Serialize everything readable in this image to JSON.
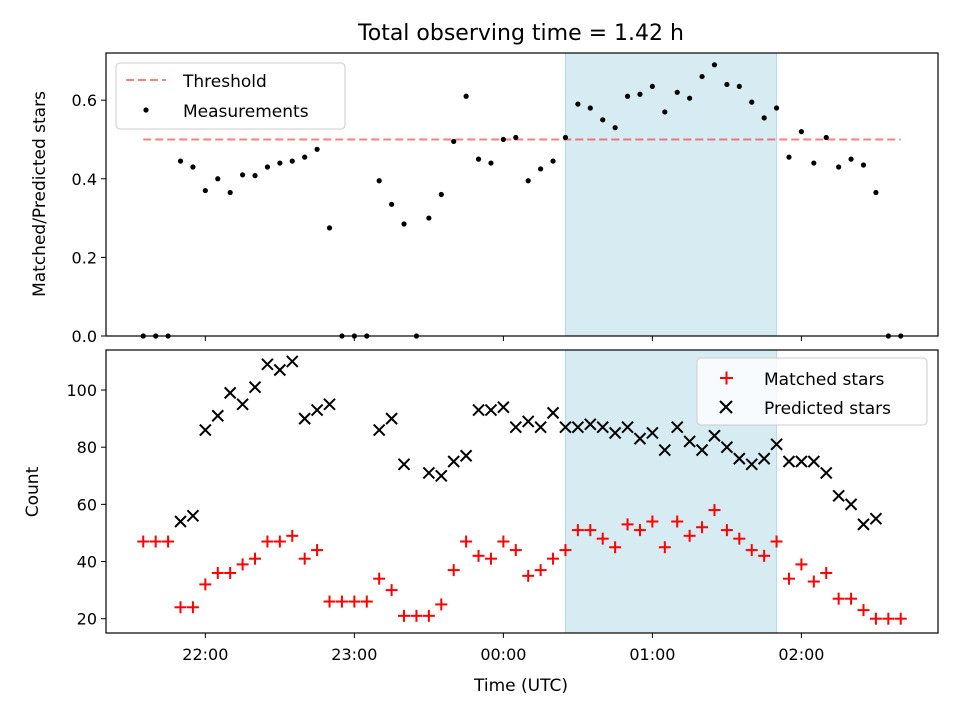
{
  "title": "Total observing time = 1.42 h",
  "xlabel": "Time (UTC)",
  "x_ticks": [
    "22:00",
    "23:00",
    "00:00",
    "01:00",
    "02:00"
  ],
  "colors": {
    "highlight": "#add8e6",
    "threshold": "#ff0000",
    "measurement": "#000000",
    "matched": "#ff0000",
    "predicted": "#000000"
  },
  "chart_data": [
    {
      "type": "scatter",
      "ylabel": "Matched/Predicted stars",
      "ylim": [
        0,
        0.72
      ],
      "y_ticks": [
        "0.0",
        "0.2",
        "0.4",
        "0.6"
      ],
      "y_tick_values": [
        0,
        0.2,
        0.4,
        0.6
      ],
      "xlim": [
        "21:20",
        "02:55"
      ],
      "highlight_span": [
        "00:25",
        "01:50"
      ],
      "legend": {
        "placement": "upper-left",
        "threshold_label": "Threshold",
        "measurements_label": "Measurements"
      },
      "threshold": {
        "name": "Threshold",
        "y": 0.5,
        "x": [
          "21:35",
          "02:40"
        ]
      },
      "series": [
        {
          "name": "Measurements",
          "points": [
            [
              "21:35",
              0
            ],
            [
              "21:40",
              0
            ],
            [
              "21:45",
              0
            ],
            [
              "21:50",
              0.445
            ],
            [
              "21:55",
              0.43
            ],
            [
              "22:00",
              0.37
            ],
            [
              "22:05",
              0.4
            ],
            [
              "22:10",
              0.365
            ],
            [
              "22:15",
              0.41
            ],
            [
              "22:20",
              0.408
            ],
            [
              "22:25",
              0.43
            ],
            [
              "22:30",
              0.44
            ],
            [
              "22:35",
              0.445
            ],
            [
              "22:40",
              0.455
            ],
            [
              "22:45",
              0.475
            ],
            [
              "22:50",
              0.275
            ],
            [
              "22:55",
              0
            ],
            [
              "23:00",
              0
            ],
            [
              "23:05",
              0
            ],
            [
              "23:10",
              0.395
            ],
            [
              "23:15",
              0.335
            ],
            [
              "23:20",
              0.285
            ],
            [
              "23:25",
              0
            ],
            [
              "23:30",
              0.3
            ],
            [
              "23:35",
              0.36
            ],
            [
              "23:40",
              0.495
            ],
            [
              "23:45",
              0.61
            ],
            [
              "23:50",
              0.45
            ],
            [
              "23:55",
              0.44
            ],
            [
              "00:00",
              0.5
            ],
            [
              "00:05",
              0.505
            ],
            [
              "00:10",
              0.395
            ],
            [
              "00:15",
              0.425
            ],
            [
              "00:20",
              0.445
            ],
            [
              "00:25",
              0.505
            ],
            [
              "00:30",
              0.59
            ],
            [
              "00:35",
              0.58
            ],
            [
              "00:40",
              0.55
            ],
            [
              "00:45",
              0.53
            ],
            [
              "00:50",
              0.61
            ],
            [
              "00:55",
              0.615
            ],
            [
              "01:00",
              0.635
            ],
            [
              "01:05",
              0.57
            ],
            [
              "01:10",
              0.62
            ],
            [
              "01:15",
              0.605
            ],
            [
              "01:20",
              0.66
            ],
            [
              "01:25",
              0.69
            ],
            [
              "01:30",
              0.64
            ],
            [
              "01:35",
              0.635
            ],
            [
              "01:40",
              0.595
            ],
            [
              "01:45",
              0.555
            ],
            [
              "01:50",
              0.58
            ],
            [
              "01:55",
              0.455
            ],
            [
              "02:00",
              0.52
            ],
            [
              "02:05",
              0.44
            ],
            [
              "02:10",
              0.505
            ],
            [
              "02:15",
              0.43
            ],
            [
              "02:20",
              0.45
            ],
            [
              "02:25",
              0.435
            ],
            [
              "02:30",
              0.365
            ],
            [
              "02:35",
              0
            ],
            [
              "02:40",
              0
            ]
          ]
        }
      ]
    },
    {
      "type": "scatter",
      "ylabel": "Count",
      "ylim": [
        15,
        114
      ],
      "y_ticks": [
        "20",
        "40",
        "60",
        "80",
        "100"
      ],
      "y_tick_values": [
        20,
        40,
        60,
        80,
        100
      ],
      "xlim": [
        "21:20",
        "02:55"
      ],
      "highlight_span": [
        "00:25",
        "01:50"
      ],
      "legend": {
        "placement": "upper-right",
        "matched_label": "Matched stars",
        "predicted_label": "Predicted stars"
      },
      "series": [
        {
          "name": "Matched stars",
          "marker": "+",
          "points": [
            [
              "21:35",
              47
            ],
            [
              "21:40",
              47
            ],
            [
              "21:45",
              47
            ],
            [
              "21:50",
              24
            ],
            [
              "21:55",
              24
            ],
            [
              "22:00",
              32
            ],
            [
              "22:05",
              36
            ],
            [
              "22:10",
              36
            ],
            [
              "22:15",
              39
            ],
            [
              "22:20",
              41
            ],
            [
              "22:25",
              47
            ],
            [
              "22:30",
              47
            ],
            [
              "22:35",
              49
            ],
            [
              "22:40",
              41
            ],
            [
              "22:45",
              44
            ],
            [
              "22:50",
              26
            ],
            [
              "22:55",
              26
            ],
            [
              "23:00",
              26
            ],
            [
              "23:05",
              26
            ],
            [
              "23:10",
              34
            ],
            [
              "23:15",
              30
            ],
            [
              "23:20",
              21
            ],
            [
              "23:25",
              21
            ],
            [
              "23:30",
              21
            ],
            [
              "23:35",
              25
            ],
            [
              "23:40",
              37
            ],
            [
              "23:45",
              47
            ],
            [
              "23:50",
              42
            ],
            [
              "23:55",
              41
            ],
            [
              "00:00",
              47
            ],
            [
              "00:05",
              44
            ],
            [
              "00:10",
              35
            ],
            [
              "00:15",
              37
            ],
            [
              "00:20",
              41
            ],
            [
              "00:25",
              44
            ],
            [
              "00:30",
              51
            ],
            [
              "00:35",
              51
            ],
            [
              "00:40",
              48
            ],
            [
              "00:45",
              45
            ],
            [
              "00:50",
              53
            ],
            [
              "00:55",
              51
            ],
            [
              "01:00",
              54
            ],
            [
              "01:05",
              45
            ],
            [
              "01:10",
              54
            ],
            [
              "01:15",
              49
            ],
            [
              "01:20",
              52
            ],
            [
              "01:25",
              58
            ],
            [
              "01:30",
              51
            ],
            [
              "01:35",
              48
            ],
            [
              "01:40",
              44
            ],
            [
              "01:45",
              42
            ],
            [
              "01:50",
              47
            ],
            [
              "01:55",
              34
            ],
            [
              "02:00",
              39
            ],
            [
              "02:05",
              33
            ],
            [
              "02:10",
              36
            ],
            [
              "02:15",
              27
            ],
            [
              "02:20",
              27
            ],
            [
              "02:25",
              23
            ],
            [
              "02:30",
              20
            ],
            [
              "02:35",
              20
            ],
            [
              "02:40",
              20
            ]
          ]
        },
        {
          "name": "Predicted stars",
          "marker": "x",
          "points": [
            [
              "21:50",
              54
            ],
            [
              "21:55",
              56
            ],
            [
              "22:00",
              86
            ],
            [
              "22:05",
              91
            ],
            [
              "22:10",
              99
            ],
            [
              "22:15",
              95
            ],
            [
              "22:20",
              101
            ],
            [
              "22:25",
              109
            ],
            [
              "22:30",
              107
            ],
            [
              "22:35",
              110
            ],
            [
              "22:40",
              90
            ],
            [
              "22:45",
              93
            ],
            [
              "22:50",
              95
            ],
            [
              "23:10",
              86
            ],
            [
              "23:15",
              90
            ],
            [
              "23:20",
              74
            ],
            [
              "23:30",
              71
            ],
            [
              "23:35",
              70
            ],
            [
              "23:40",
              75
            ],
            [
              "23:45",
              77
            ],
            [
              "23:50",
              93
            ],
            [
              "23:55",
              93
            ],
            [
              "00:00",
              94
            ],
            [
              "00:05",
              87
            ],
            [
              "00:10",
              89
            ],
            [
              "00:15",
              87
            ],
            [
              "00:20",
              92
            ],
            [
              "00:25",
              87
            ],
            [
              "00:30",
              87
            ],
            [
              "00:35",
              88
            ],
            [
              "00:40",
              87
            ],
            [
              "00:45",
              85
            ],
            [
              "00:50",
              87
            ],
            [
              "00:55",
              83
            ],
            [
              "01:00",
              85
            ],
            [
              "01:05",
              79
            ],
            [
              "01:10",
              87
            ],
            [
              "01:15",
              82
            ],
            [
              "01:20",
              79
            ],
            [
              "01:25",
              84
            ],
            [
              "01:30",
              80
            ],
            [
              "01:35",
              76
            ],
            [
              "01:40",
              74
            ],
            [
              "01:45",
              76
            ],
            [
              "01:50",
              81
            ],
            [
              "01:55",
              75
            ],
            [
              "02:00",
              75
            ],
            [
              "02:05",
              75
            ],
            [
              "02:10",
              71
            ],
            [
              "02:15",
              63
            ],
            [
              "02:20",
              60
            ],
            [
              "02:25",
              53
            ],
            [
              "02:30",
              55
            ]
          ]
        }
      ]
    }
  ]
}
